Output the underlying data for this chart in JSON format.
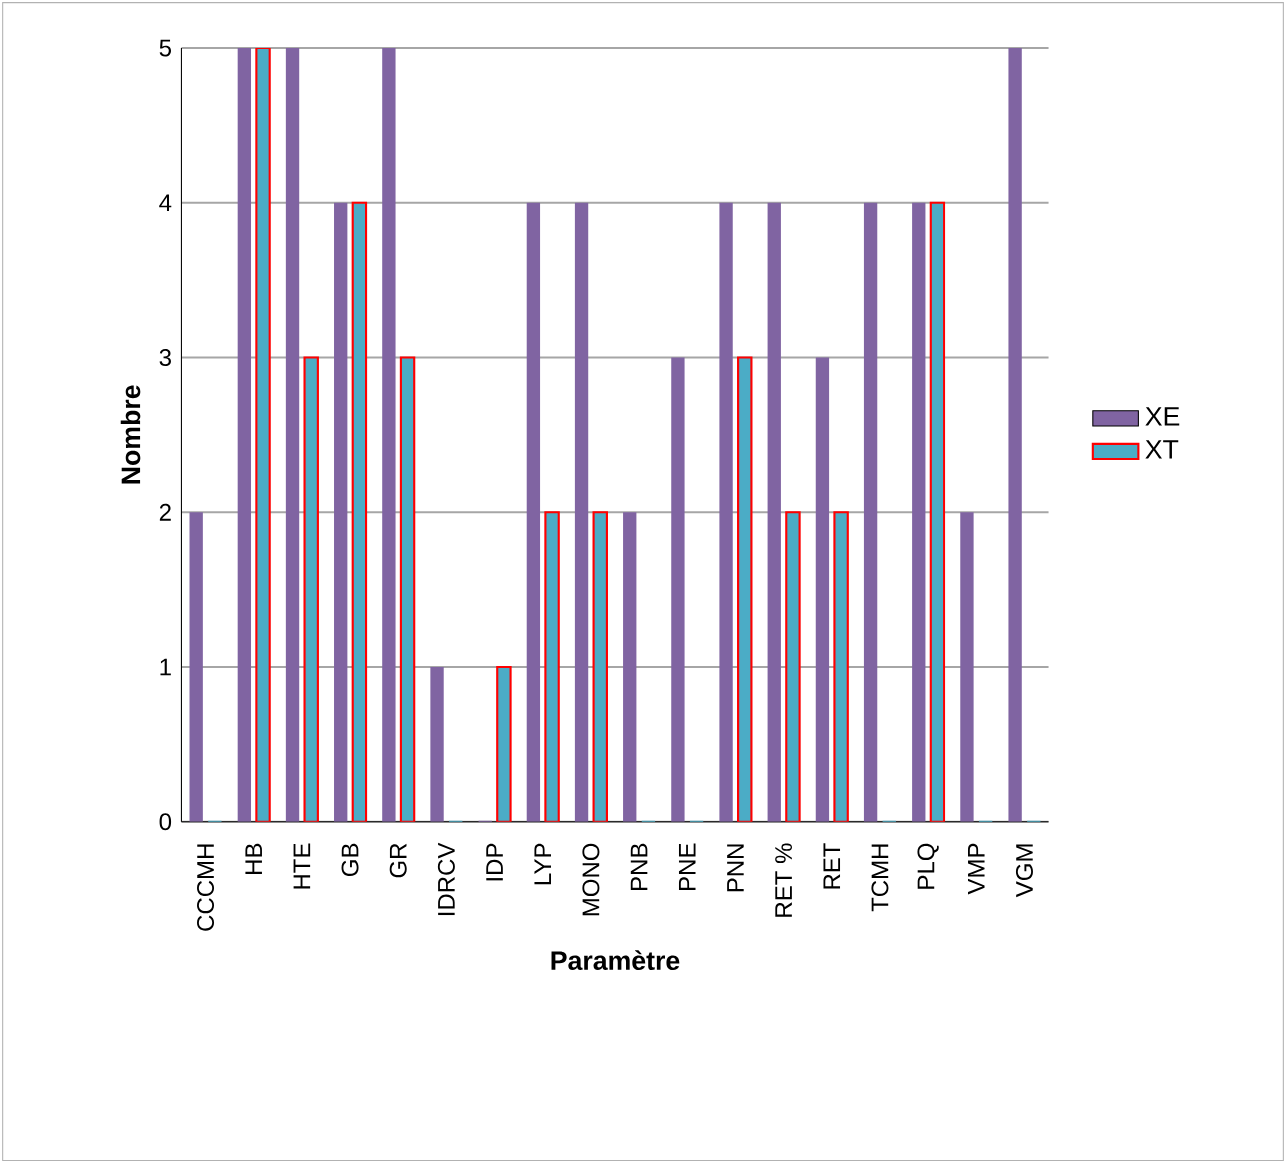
{
  "chart_data": {
    "type": "bar",
    "xlabel": "Paramètre",
    "ylabel": "Nombre",
    "categories": [
      "CCCMH",
      "HB",
      "HTE",
      "GB",
      "GR",
      "IDRCV",
      "IDP",
      "LYP",
      "MONO",
      "PNB",
      "PNE",
      "PNN",
      "RET %",
      "RET",
      "TCMH",
      "PLQ",
      "VMP",
      "VGM"
    ],
    "series": [
      {
        "name": "XE",
        "color": "#8064a2",
        "values": [
          2,
          5,
          5,
          4,
          5,
          1,
          0,
          4,
          4,
          2,
          3,
          4,
          4,
          3,
          4,
          4,
          2,
          5
        ]
      },
      {
        "name": "XT",
        "color": "#4bacc6",
        "values": [
          0,
          5,
          3,
          4,
          3,
          0,
          1,
          2,
          2,
          0,
          0,
          3,
          2,
          2,
          0,
          4,
          0,
          0
        ]
      }
    ],
    "ylim": [
      0,
      5
    ],
    "yticks": [
      0,
      1,
      2,
      3,
      4,
      5
    ],
    "grid": "y",
    "legend": "right"
  }
}
